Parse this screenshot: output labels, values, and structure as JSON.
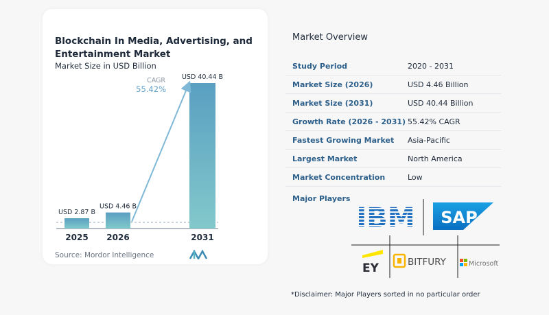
{
  "chart_data": {
    "type": "bar",
    "title": "Blockchain In Media, Advertising, and Entertainment Market",
    "subtitle": "Market Size in USD Billion",
    "categories": [
      "2025",
      "2026",
      "2031"
    ],
    "values": [
      2.87,
      4.46,
      40.44
    ],
    "data_labels": [
      "USD 2.87 B",
      "USD 4.46 B",
      "USD 40.44 B"
    ],
    "cagr_label": "CAGR",
    "cagr_value": "55.42%",
    "colors": {
      "bar_top": "#5a9fc1",
      "bar_bottom": "#7fc4c9",
      "arrow": "#7fb8d6"
    }
  },
  "source": "Source:  Mordor Intelligence",
  "overview": {
    "title": "Market Overview",
    "rows": [
      {
        "label": "Study Period",
        "value": "2020 - 2031"
      },
      {
        "label": "Market Size (2026)",
        "value": "USD 4.46 Billion"
      },
      {
        "label": "Market Size (2031)",
        "value": "USD 40.44 Billion"
      },
      {
        "label": "Growth Rate (2026 - 2031)",
        "value": "55.42% CAGR"
      },
      {
        "label": "Fastest Growing Market",
        "value": "Asia-Pacific"
      },
      {
        "label": "Largest Market",
        "value": "North America"
      },
      {
        "label": "Market Concentration",
        "value": "Low"
      }
    ],
    "players_label": "Major Players",
    "players": [
      "IBM",
      "SAP",
      "EY",
      "BITFURY",
      "Microsoft"
    ],
    "disclaimer": "*Disclaimer: Major Players sorted in no particular order"
  }
}
